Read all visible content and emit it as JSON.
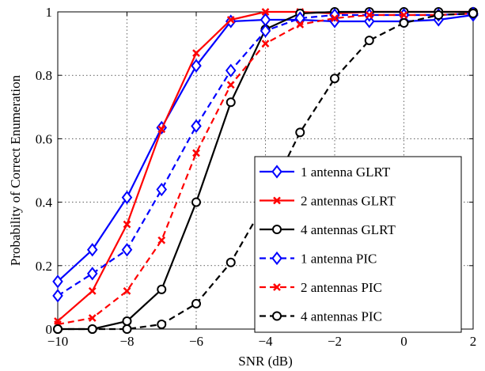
{
  "chart_data": {
    "type": "line",
    "xlabel": "SNR (dB)",
    "ylabel": "Probability of Correct Enumeration",
    "xlim": [
      -10,
      2
    ],
    "ylim": [
      0,
      1
    ],
    "xticks": [
      -10,
      -8,
      -6,
      -4,
      -2,
      0,
      2
    ],
    "yticks": [
      0,
      0.2,
      0.4,
      0.6,
      0.8,
      1
    ],
    "xtick_labels": [
      "−10",
      "−8",
      "−6",
      "−4",
      "−2",
      "0",
      "2"
    ],
    "ytick_labels": [
      "0",
      "0.2",
      "0.4",
      "0.6",
      "0.8",
      "1"
    ],
    "grid": true,
    "legend_position": "bottom-right",
    "x": [
      -10,
      -9,
      -8,
      -7,
      -6,
      -5,
      -4,
      -3,
      -2,
      -1,
      0,
      1,
      2
    ],
    "series": [
      {
        "name": "1 antenna GLRT",
        "color": "#0000ff",
        "dash": "solid",
        "marker": "diamond",
        "values": [
          0.15,
          0.25,
          0.415,
          0.635,
          0.83,
          0.97,
          0.975,
          0.975,
          0.97,
          0.97,
          0.97,
          0.975,
          0.99
        ]
      },
      {
        "name": "2 antennas GLRT",
        "color": "#ff0000",
        "dash": "solid",
        "marker": "x",
        "values": [
          0.025,
          0.12,
          0.33,
          0.63,
          0.87,
          0.975,
          1.0,
          1.0,
          0.995,
          1.0,
          1.0,
          1.0,
          1.0
        ]
      },
      {
        "name": "4 antennas GLRT",
        "color": "#000000",
        "dash": "solid",
        "marker": "circle",
        "values": [
          0.0,
          0.0,
          0.025,
          0.125,
          0.4,
          0.715,
          0.945,
          0.995,
          1.0,
          1.0,
          1.0,
          1.0,
          1.0
        ]
      },
      {
        "name": "1 antenna PIC",
        "color": "#0000ff",
        "dash": "dashed",
        "marker": "diamond",
        "values": [
          0.105,
          0.175,
          0.25,
          0.44,
          0.64,
          0.815,
          0.94,
          0.98,
          0.99,
          0.99,
          0.99,
          0.99,
          0.995
        ]
      },
      {
        "name": "2 antennas PIC",
        "color": "#ff0000",
        "dash": "dashed",
        "marker": "x",
        "values": [
          0.015,
          0.035,
          0.12,
          0.28,
          0.555,
          0.77,
          0.9,
          0.96,
          0.98,
          0.99,
          0.99,
          0.99,
          0.995
        ]
      },
      {
        "name": "4 antennas PIC",
        "color": "#000000",
        "dash": "dashed",
        "marker": "circle",
        "values": [
          0.0,
          0.0,
          0.0,
          0.015,
          0.08,
          0.21,
          0.4,
          0.62,
          0.79,
          0.91,
          0.965,
          0.99,
          0.995
        ]
      }
    ]
  }
}
